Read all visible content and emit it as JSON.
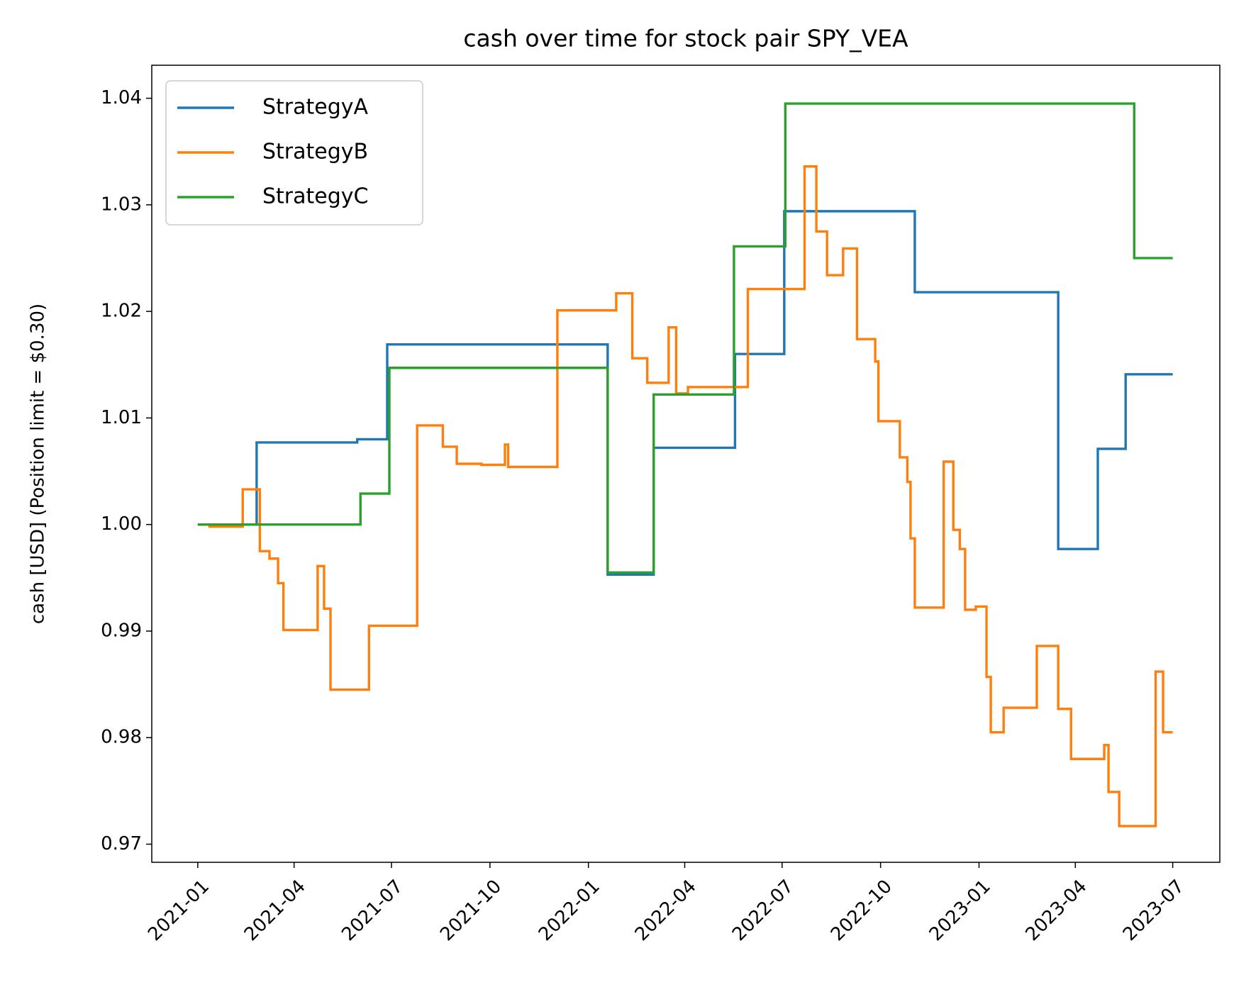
{
  "chart_data": {
    "type": "line",
    "drawstyle": "steps-post",
    "title": "cash over time for stock pair SPY_VEA",
    "y_label": "cash [USD] (Position limit = $0.30)",
    "xlim": [
      "2020-11-19",
      "2023-08-14"
    ],
    "xticks": [
      "2021-01",
      "2021-04",
      "2021-07",
      "2021-10",
      "2022-01",
      "2022-04",
      "2022-07",
      "2022-10",
      "2023-01",
      "2023-04",
      "2023-07"
    ],
    "ylim": [
      0.9683,
      1.0431
    ],
    "yticks": [
      0.97,
      0.98,
      0.99,
      {
        "value": 1,
        "label": "1.00"
      },
      1.01,
      1.02,
      1.03,
      1.04
    ],
    "grid": false,
    "legend": "upper-left",
    "series": [
      {
        "name": "StrategyA",
        "color": "#1f77b4",
        "x": [
          "2021-01-01",
          "2021-02-25",
          "2021-05-30",
          "2021-06-27",
          "2022-01-19",
          "2022-03-03",
          "2022-05-18",
          "2022-07-03",
          "2022-11-02",
          "2023-03-16",
          "2023-04-22",
          "2023-05-18",
          "2023-07-01"
        ],
        "values": [
          1.0,
          1.0077,
          1.008,
          1.0169,
          0.9953,
          1.0072,
          1.016,
          1.0294,
          1.0218,
          0.9977,
          1.0071,
          1.0141,
          1.0141
        ]
      },
      {
        "name": "StrategyB",
        "color": "#ff7f0e",
        "x": [
          "2021-01-01",
          "2021-01-12",
          "2021-02-12",
          "2021-02-28",
          "2021-03-09",
          "2021-03-17",
          "2021-03-22",
          "2021-04-23",
          "2021-04-29",
          "2021-05-05",
          "2021-06-10",
          "2021-07-25",
          "2021-08-18",
          "2021-08-31",
          "2021-09-23",
          "2021-10-15",
          "2021-10-18",
          "2021-12-03",
          "2022-01-27",
          "2022-02-11",
          "2022-02-25",
          "2022-03-17",
          "2022-03-24",
          "2022-04-04",
          "2022-05-30",
          "2022-07-22",
          "2022-08-02",
          "2022-08-12",
          "2022-08-27",
          "2022-09-09",
          "2022-09-26",
          "2022-09-29",
          "2022-10-19",
          "2022-10-26",
          "2022-10-29",
          "2022-11-02",
          "2022-11-29",
          "2022-12-08",
          "2022-12-14",
          "2022-12-19",
          "2022-12-29",
          "2023-01-08",
          "2023-01-12",
          "2023-01-24",
          "2023-02-24",
          "2023-03-16",
          "2023-03-28",
          "2023-04-28",
          "2023-05-02",
          "2023-05-12",
          "2023-06-15",
          "2023-06-22",
          "2023-07-01"
        ],
        "values": [
          1.0,
          0.9998,
          1.0033,
          0.9975,
          0.9968,
          0.9945,
          0.9901,
          0.9961,
          0.9921,
          0.9845,
          0.9905,
          1.0093,
          1.0073,
          1.0057,
          1.0056,
          1.0075,
          1.0054,
          1.0201,
          1.0217,
          1.0156,
          1.0133,
          1.0185,
          1.0123,
          1.0129,
          1.0221,
          1.0336,
          1.0275,
          1.0234,
          1.0259,
          1.0174,
          1.0153,
          1.0097,
          1.0063,
          1.004,
          0.9987,
          0.9922,
          1.0059,
          0.9995,
          0.9977,
          0.992,
          0.9923,
          0.9857,
          0.9805,
          0.9828,
          0.9886,
          0.9827,
          0.978,
          0.9793,
          0.9749,
          0.9717,
          0.9862,
          0.9805,
          0.9805
        ]
      },
      {
        "name": "StrategyC",
        "color": "#2ca02c",
        "x": [
          "2021-01-01",
          "2021-06-02",
          "2021-06-29",
          "2022-01-19",
          "2022-03-03",
          "2022-05-17",
          "2022-07-04",
          "2022-11-04",
          "2023-05-26",
          "2023-07-01"
        ],
        "values": [
          1.0,
          1.0029,
          1.0147,
          0.9955,
          1.0122,
          1.0261,
          1.0395,
          1.0395,
          1.025,
          1.025
        ]
      }
    ]
  }
}
